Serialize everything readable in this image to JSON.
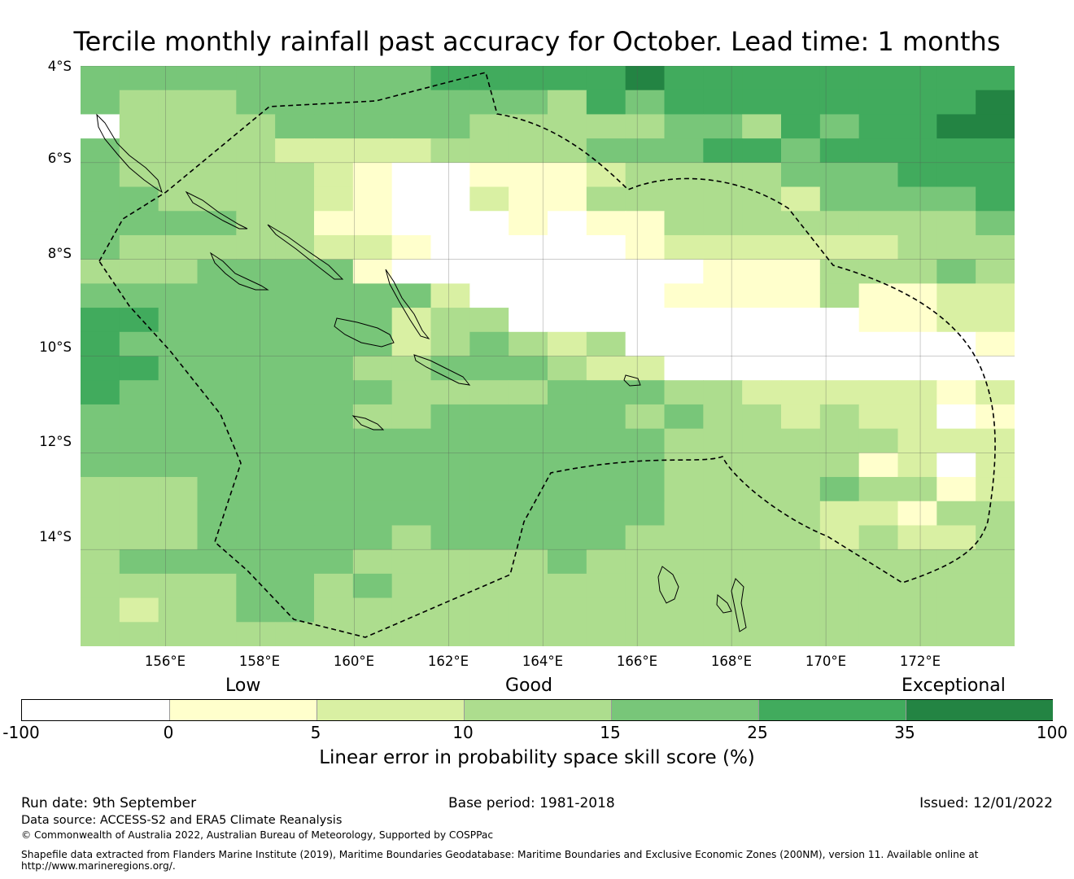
{
  "title": "Tercile monthly rainfall past accuracy for October. Lead time: 1 months",
  "map": {
    "lat_range": [
      -16,
      -4
    ],
    "lon_range": [
      154.2,
      174
    ],
    "lat_ticks": [
      "4°S",
      "6°S",
      "8°S",
      "10°S",
      "12°S",
      "14°S"
    ],
    "lon_ticks": [
      "156°E",
      "158°E",
      "160°E",
      "162°E",
      "164°E",
      "166°E",
      "168°E",
      "170°E",
      "172°E"
    ],
    "boundary_style": "dashed",
    "grid": true
  },
  "colorbar": {
    "category_labels": [
      "Low",
      "Good",
      "Exceptional"
    ],
    "ticks": [
      "-100",
      "0",
      "5",
      "10",
      "15",
      "25",
      "35",
      "100"
    ],
    "colors": [
      "#ffffff",
      "#ffffcc",
      "#d9f0a3",
      "#addd8e",
      "#78c679",
      "#41ab5d",
      "#238443"
    ],
    "label": "Linear error in probability space skill score (%)"
  },
  "footer": {
    "run_date": "Run date: 9th September",
    "base_period": "Base period: 1981-2018",
    "issued": "Issued: 12/01/2022",
    "data_source": "Data source: ACCESS-S2 and ERA5 Climate Reanalysis",
    "copyright": "© Commonwealth of Australia 2022, Australian Bureau of Meteorology, Supported by COSPPac",
    "shapefile_line1": "Shapefile data extracted from Flanders Marine Institute (2019), Maritime Boundaries Geodatabase: Maritime Boundaries and Exclusive Economic Zones (200NM), version 11. Available online at",
    "shapefile_line2": "http://www.marineregions.org/."
  },
  "skill_grid": {
    "legend": "0=below 0 (white), 1=0-5, 2=5-10, 3=10-15, 4=15-25, 5=25-35, 6=35-100",
    "rows": [
      "444444444555556555555555",
      "433344444444354555555556",
      "033334444433333443545566",
      "433332222333344455455555",
      "433333210011123333444555",
      "443333210021133333244445",
      "444433110001011333333334",
      "433333221000001222222333",
      "333444410000000011133343",
      "444444444200000111131122",
      "554444442330000000001122",
      "544444442343230000000001",
      "554444433444322000000000",
      "544444443333444332222212",
      "444444433444443433232201",
      "444444444444444333333222",
      "444444444444444333331202",
      "333444444444444333343312",
      "333444444444444333322133",
      "333444443444443333323223",
      "344444433333433333333333",
      "333344343333333333333333",
      "323344333333333333333333",
      "333333333333333333333333"
    ]
  }
}
